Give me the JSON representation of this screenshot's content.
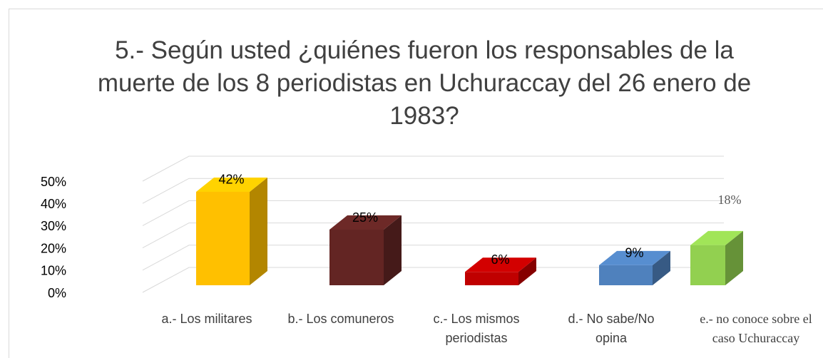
{
  "chart_data": {
    "type": "bar3d",
    "title": "5.- Según usted ¿quiénes fueron los responsables de la muerte de los 8 periodistas en Uchuraccay del 26 enero de 1983?",
    "categories": [
      "a.- Los militares",
      "b.- Los comuneros",
      "c.- Los mismos periodistas",
      "d.- No sabe/No opina",
      "e.- no conoce sobre el caso Uchuraccay"
    ],
    "values": [
      42,
      25,
      6,
      9,
      18
    ],
    "value_labels": [
      "42%",
      "25%",
      "6%",
      "9%",
      "18%"
    ],
    "colors": [
      "#ffc000",
      "#632523",
      "#c00000",
      "#4f81bd",
      "#92d050"
    ],
    "ylim": [
      0,
      50
    ],
    "yticks": [
      {
        "value": 0,
        "label": "0%"
      },
      {
        "value": 10,
        "label": "10%"
      },
      {
        "value": 20,
        "label": "20%"
      },
      {
        "value": 30,
        "label": "30%"
      },
      {
        "value": 40,
        "label": "40%"
      },
      {
        "value": 50,
        "label": "50%"
      }
    ],
    "grid": true
  }
}
